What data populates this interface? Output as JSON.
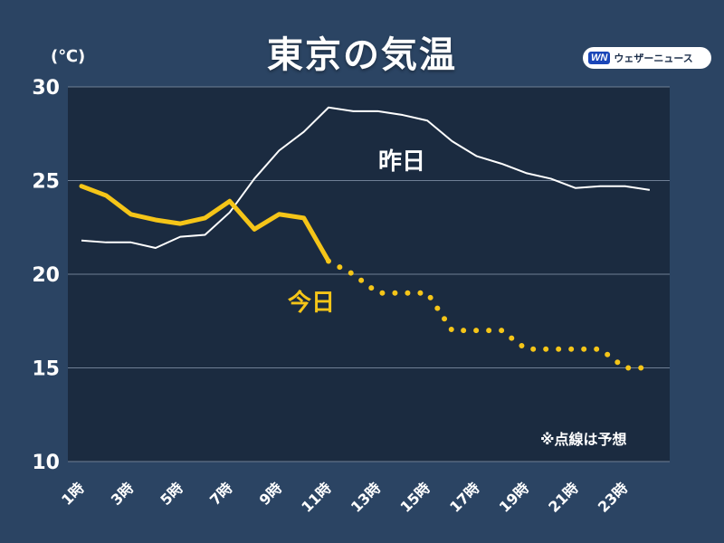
{
  "chart_data": {
    "type": "line",
    "title": "東京の気温",
    "unit_label": "(℃)",
    "ylim": [
      10,
      30
    ],
    "y_ticks": [
      10,
      15,
      20,
      25,
      30
    ],
    "x": [
      1,
      2,
      3,
      4,
      5,
      6,
      7,
      8,
      9,
      10,
      11,
      12,
      13,
      14,
      15,
      16,
      17,
      18,
      19,
      20,
      21,
      22,
      23,
      24
    ],
    "x_tick_labels": [
      "1時",
      "3時",
      "5時",
      "7時",
      "9時",
      "11時",
      "13時",
      "15時",
      "17時",
      "19時",
      "21時",
      "23時"
    ],
    "x_tick_hours": [
      1,
      3,
      5,
      7,
      9,
      11,
      13,
      15,
      17,
      19,
      21,
      23
    ],
    "series": [
      {
        "name": "昨日",
        "color": "#ffffff",
        "style": "solid",
        "values": [
          21.8,
          21.7,
          21.7,
          21.4,
          22.0,
          22.1,
          23.3,
          25.1,
          26.6,
          27.6,
          28.9,
          28.7,
          28.7,
          28.5,
          28.2,
          27.1,
          26.3,
          25.9,
          25.4,
          25.1,
          24.6,
          24.7,
          24.7,
          24.5
        ]
      },
      {
        "name": "今日",
        "color": "#f5c518",
        "observed": [
          24.7,
          24.2,
          23.2,
          22.9,
          22.7,
          23.0,
          23.9,
          22.4,
          23.2,
          23.0,
          20.7
        ],
        "forecast_x": [
          11,
          12,
          13,
          14,
          15,
          16,
          17,
          18,
          19,
          20,
          21,
          22,
          23,
          24
        ],
        "forecast": [
          20.7,
          20.0,
          19.0,
          19.0,
          19.0,
          17.0,
          17.0,
          17.0,
          16.0,
          16.0,
          16.0,
          16.0,
          15.0,
          15.0
        ]
      }
    ],
    "note": "※点線は予想",
    "grid": true
  },
  "header": {
    "title": "東京の気温",
    "logo_mark": "WN",
    "logo_text": "ウェザーニュース"
  }
}
